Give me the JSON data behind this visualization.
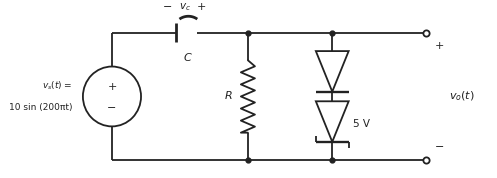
{
  "bg_color": "#ffffff",
  "line_color": "#222222",
  "dot_color": "#222222",
  "vs_label_line1": "$v_s(t) =$",
  "vs_label_line2": "10 sin (200πt)",
  "vc_label_minus": "−",
  "vc_label_v": "$v_c$",
  "vc_label_plus": "+",
  "C_label": "C",
  "R_label": "R",
  "zener_label": "5 V",
  "vo_label": "$v_o(t)$",
  "plus_label": "+",
  "minus_label": "−",
  "figw": 4.97,
  "figh": 1.78,
  "dpi": 100,
  "xlim": [
    0,
    10
  ],
  "ylim": [
    0,
    3.6
  ]
}
